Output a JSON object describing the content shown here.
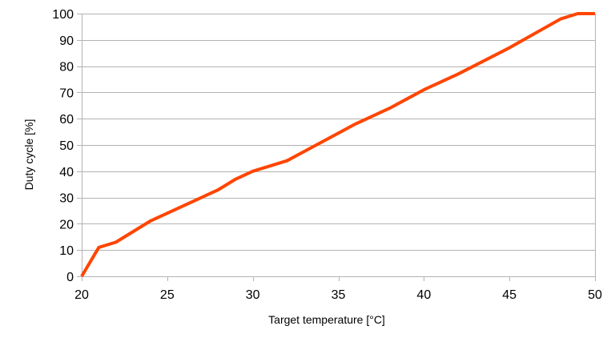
{
  "chart_data": {
    "type": "line",
    "title": "",
    "xlabel": "Target temperature [°C]",
    "ylabel": "Duty cycle [%]",
    "xlim": [
      20,
      50
    ],
    "ylim": [
      0,
      100
    ],
    "xticks": [
      20,
      25,
      30,
      35,
      40,
      45,
      50
    ],
    "yticks": [
      0,
      10,
      20,
      30,
      40,
      50,
      60,
      70,
      80,
      90,
      100
    ],
    "grid": "horizontal",
    "legend": "none",
    "series": [
      {
        "color": "#ff4500",
        "x": [
          20,
          21,
          22,
          24,
          26,
          28,
          29,
          30,
          32,
          34,
          36,
          38,
          40,
          42,
          45,
          48,
          49,
          50
        ],
        "y": [
          0,
          11,
          13,
          21,
          27,
          33,
          37,
          40,
          44,
          51,
          58,
          64,
          71,
          77,
          87,
          98,
          100,
          100
        ]
      }
    ]
  },
  "colors": {
    "grid": "#b3b3b3",
    "axis": "#b3b3b3",
    "line": "#ff4500"
  }
}
